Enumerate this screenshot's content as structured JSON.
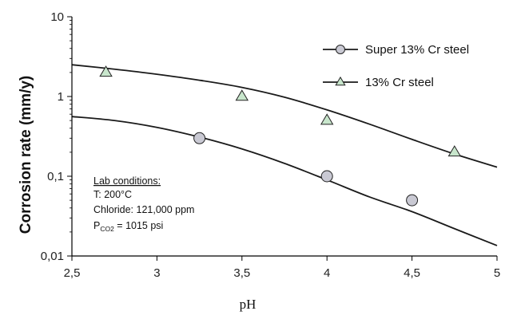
{
  "chart_data": {
    "type": "scatter",
    "title": "",
    "xlabel": "pH",
    "ylabel": "Corrosion rate (mm/y)",
    "xlim": [
      2.5,
      5
    ],
    "ylim": [
      0.01,
      10
    ],
    "yscale": "log",
    "grid": false,
    "legend_position": "top-right",
    "xticks": [
      2.5,
      3,
      3.5,
      4,
      4.5,
      5
    ],
    "xtick_labels": [
      "2,5",
      "3",
      "3,5",
      "4",
      "4,5",
      "5"
    ],
    "yticks": [
      0.01,
      0.1,
      1,
      10
    ],
    "ytick_labels": [
      "0,01",
      "0,1",
      "1",
      "10"
    ],
    "series": [
      {
        "name": "Super 13% Cr steel",
        "marker": "circle",
        "marker_color": "#c9c9d3",
        "points": [
          {
            "x": 3.25,
            "y": 0.3
          },
          {
            "x": 4.0,
            "y": 0.1
          },
          {
            "x": 4.5,
            "y": 0.05
          }
        ],
        "fit_curve": [
          {
            "x": 2.5,
            "y": 0.56
          },
          {
            "x": 2.75,
            "y": 0.5
          },
          {
            "x": 3.0,
            "y": 0.41
          },
          {
            "x": 3.25,
            "y": 0.31
          },
          {
            "x": 3.5,
            "y": 0.22
          },
          {
            "x": 3.75,
            "y": 0.145
          },
          {
            "x": 4.0,
            "y": 0.09
          },
          {
            "x": 4.25,
            "y": 0.055
          },
          {
            "x": 4.5,
            "y": 0.036
          },
          {
            "x": 4.75,
            "y": 0.022
          },
          {
            "x": 5.0,
            "y": 0.0135
          }
        ]
      },
      {
        "name": "13% Cr steel",
        "marker": "triangle",
        "marker_color": "#c8e6cc",
        "points": [
          {
            "x": 2.7,
            "y": 2.0
          },
          {
            "x": 3.5,
            "y": 1.0
          },
          {
            "x": 4.0,
            "y": 0.5
          },
          {
            "x": 4.75,
            "y": 0.2
          }
        ],
        "fit_curve": [
          {
            "x": 2.5,
            "y": 2.5
          },
          {
            "x": 2.75,
            "y": 2.2
          },
          {
            "x": 3.0,
            "y": 1.9
          },
          {
            "x": 3.25,
            "y": 1.6
          },
          {
            "x": 3.5,
            "y": 1.3
          },
          {
            "x": 3.75,
            "y": 0.98
          },
          {
            "x": 4.0,
            "y": 0.68
          },
          {
            "x": 4.25,
            "y": 0.45
          },
          {
            "x": 4.5,
            "y": 0.29
          },
          {
            "x": 4.75,
            "y": 0.19
          },
          {
            "x": 5.0,
            "y": 0.13
          }
        ]
      }
    ],
    "annotation": {
      "heading": "Lab conditions:",
      "lines": [
        "T: 200°C",
        "Chloride: 121,000 ppm"
      ],
      "pressure_prefix": "P",
      "pressure_subscript": "CO2",
      "pressure_value": " =  1015 psi"
    }
  }
}
